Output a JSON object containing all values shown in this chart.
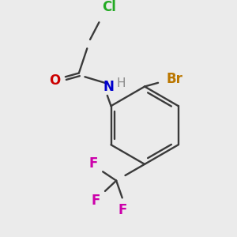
{
  "bg_color": "#ebebeb",
  "bond_color": "#3a3a3a",
  "colors": {
    "Cl": "#22aa22",
    "O": "#cc0000",
    "N": "#0000cc",
    "H": "#888888",
    "Br": "#bb7700",
    "F": "#cc00aa",
    "C": "#3a3a3a"
  },
  "lw": 1.7
}
